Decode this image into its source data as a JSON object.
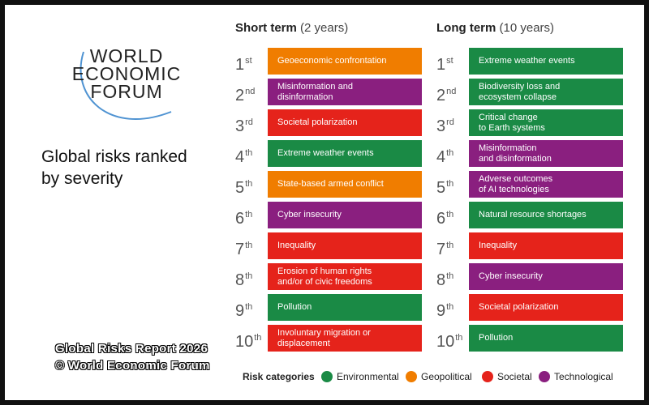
{
  "logo": [
    "WORLD",
    "ECONOMIC",
    "FORUM"
  ],
  "title": [
    "Global risks ranked",
    "by severity"
  ],
  "watermark": [
    "Global Risks Report 2026",
    "© World Economic Forum"
  ],
  "columns": [
    {
      "heading": "Short term",
      "period": "(2 years)",
      "rows": [
        {
          "rank": "1",
          "suffix": "st",
          "label": "Geoeconomic confrontation",
          "color": "#f07d00"
        },
        {
          "rank": "2",
          "suffix": "nd",
          "label": "Misinformation and\ndisinformation",
          "color": "#8a1f7f"
        },
        {
          "rank": "3",
          "suffix": "rd",
          "label": "Societal polarization",
          "color": "#e5231b"
        },
        {
          "rank": "4",
          "suffix": "th",
          "label": "Extreme weather events",
          "color": "#1a8a45"
        },
        {
          "rank": "5",
          "suffix": "th",
          "label": "State-based armed conflict",
          "color": "#f07d00"
        },
        {
          "rank": "6",
          "suffix": "th",
          "label": "Cyber insecurity",
          "color": "#8a1f7f"
        },
        {
          "rank": "7",
          "suffix": "th",
          "label": "Inequality",
          "color": "#e5231b"
        },
        {
          "rank": "8",
          "suffix": "th",
          "label": "Erosion of human rights\nand/or of civic freedoms",
          "color": "#e5231b"
        },
        {
          "rank": "9",
          "suffix": "th",
          "label": "Pollution",
          "color": "#1a8a45"
        },
        {
          "rank": "10",
          "suffix": "th",
          "label": "Involuntary migration or\ndisplacement",
          "color": "#e5231b"
        }
      ]
    },
    {
      "heading": "Long term",
      "period": "(10 years)",
      "rows": [
        {
          "rank": "1",
          "suffix": "st",
          "label": "Extreme weather events",
          "color": "#1a8a45"
        },
        {
          "rank": "2",
          "suffix": "nd",
          "label": "Biodiversity loss and\necosystem collapse",
          "color": "#1a8a45"
        },
        {
          "rank": "3",
          "suffix": "rd",
          "label": "Critical change\nto Earth systems",
          "color": "#1a8a45"
        },
        {
          "rank": "4",
          "suffix": "th",
          "label": "Misinformation\nand disinformation",
          "color": "#8a1f7f"
        },
        {
          "rank": "5",
          "suffix": "th",
          "label": "Adverse outcomes\nof AI technologies",
          "color": "#8a1f7f"
        },
        {
          "rank": "6",
          "suffix": "th",
          "label": "Natural resource shortages",
          "color": "#1a8a45"
        },
        {
          "rank": "7",
          "suffix": "th",
          "label": "Inequality",
          "color": "#e5231b"
        },
        {
          "rank": "8",
          "suffix": "th",
          "label": "Cyber insecurity",
          "color": "#8a1f7f"
        },
        {
          "rank": "9",
          "suffix": "th",
          "label": "Societal polarization",
          "color": "#e5231b"
        },
        {
          "rank": "10",
          "suffix": "th",
          "label": "Pollution",
          "color": "#1a8a45"
        }
      ]
    }
  ],
  "legend": {
    "title": "Risk categories",
    "items": [
      {
        "name": "Environmental",
        "color": "#1a8a45"
      },
      {
        "name": "Geopolitical",
        "color": "#f07d00"
      },
      {
        "name": "Societal",
        "color": "#e5231b"
      },
      {
        "name": "Technological",
        "color": "#8a1f7f"
      }
    ]
  }
}
